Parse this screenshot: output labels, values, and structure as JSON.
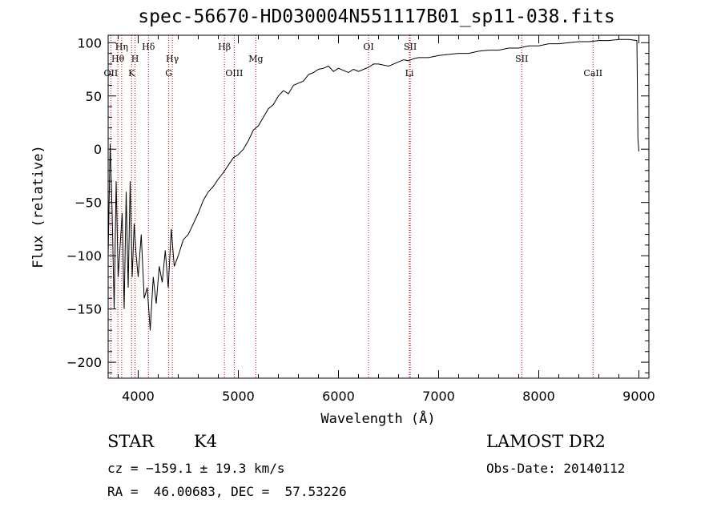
{
  "chart_data": {
    "type": "line",
    "title": "spec-56670-HD030004N551117B01_sp11-038.fits",
    "xlabel": "Wavelength (Å)",
    "ylabel": "Flux (relative)",
    "xlim": [
      3700,
      9100
    ],
    "ylim": [
      -215,
      107
    ],
    "x_ticks": [
      4000,
      5000,
      6000,
      7000,
      8000,
      9000
    ],
    "y_ticks": [
      -200,
      -150,
      -100,
      -50,
      0,
      50,
      100
    ],
    "series": [
      {
        "x": [
          3700,
          3720,
          3740,
          3760,
          3780,
          3800,
          3820,
          3840,
          3860,
          3880,
          3900,
          3920,
          3940,
          3960,
          3980,
          4000,
          4030,
          4060,
          4090,
          4120,
          4150,
          4180,
          4210,
          4240,
          4270,
          4300,
          4330,
          4360,
          4400,
          4450,
          4500,
          4550,
          4600,
          4650,
          4700,
          4750,
          4800,
          4850,
          4900,
          4950,
          5000,
          5050,
          5100,
          5150,
          5200,
          5250,
          5300,
          5350,
          5400,
          5450,
          5500,
          5550,
          5600,
          5650,
          5700,
          5750,
          5800,
          5850,
          5900,
          5950,
          6000,
          6050,
          6100,
          6150,
          6200,
          6250,
          6300,
          6350,
          6400,
          6450,
          6500,
          6550,
          6600,
          6650,
          6700,
          6750,
          6800,
          6900,
          7000,
          7100,
          7200,
          7300,
          7400,
          7500,
          7600,
          7700,
          7800,
          7900,
          8000,
          8100,
          8200,
          8300,
          8400,
          8500,
          8600,
          8700,
          8800,
          8900,
          8980,
          8990,
          9000
        ],
        "y": [
          -100,
          5,
          -60,
          -150,
          -30,
          -120,
          -90,
          -60,
          -150,
          -40,
          -130,
          -30,
          -120,
          -70,
          -100,
          -120,
          -80,
          -140,
          -130,
          -170,
          -120,
          -145,
          -110,
          -125,
          -95,
          -130,
          -75,
          -110,
          -100,
          -85,
          -80,
          -70,
          -60,
          -48,
          -40,
          -35,
          -28,
          -22,
          -15,
          -8,
          -5,
          0,
          8,
          18,
          22,
          30,
          38,
          42,
          50,
          55,
          52,
          60,
          62,
          64,
          70,
          72,
          75,
          76,
          78,
          73,
          76,
          74,
          72,
          75,
          73,
          75,
          77,
          80,
          80,
          79,
          78,
          80,
          82,
          84,
          83,
          85,
          86,
          86,
          88,
          89,
          90,
          90,
          92,
          93,
          93,
          95,
          95,
          97,
          97,
          99,
          99,
          100,
          101,
          101,
          102,
          102,
          103,
          103,
          102,
          10,
          -2
        ]
      }
    ],
    "lines": [
      {
        "name": "Hη",
        "wave": 3835,
        "row": 1
      },
      {
        "name": "Hθ",
        "wave": 3797,
        "row": 2
      },
      {
        "name": "OII",
        "wave": 3727,
        "row": 3
      },
      {
        "name": "H",
        "wave": 3968,
        "row": 2
      },
      {
        "name": "K",
        "wave": 3934,
        "row": 3
      },
      {
        "name": "Hδ",
        "wave": 4102,
        "row": 1
      },
      {
        "name": "Hγ",
        "wave": 4341,
        "row": 2
      },
      {
        "name": "G",
        "wave": 4305,
        "row": 3
      },
      {
        "name": "Hβ",
        "wave": 4861,
        "row": 1
      },
      {
        "name": "OIII",
        "wave": 4959,
        "row": 3
      },
      {
        "name": "Mg",
        "wave": 5175,
        "row": 2
      },
      {
        "name": "OI",
        "wave": 6300,
        "row": 1
      },
      {
        "name": "SII",
        "wave": 6717,
        "row": 1
      },
      {
        "name": "Li",
        "wave": 6708,
        "row": 3
      },
      {
        "name": "SII",
        "wave": 7830,
        "row": 2
      },
      {
        "name": "CaII",
        "wave": 8542,
        "row": 3
      }
    ],
    "grid": false,
    "line_color": "#000000",
    "marker_color": "#cc0000"
  },
  "info": {
    "class": "STAR",
    "subclass": "K4",
    "survey": "LAMOST DR2",
    "cz": "cz = −159.1 ± 19.3 km/s",
    "obs_date": "Obs-Date: 20140112",
    "coords": "RA =  46.00683, DEC =  57.53226"
  }
}
